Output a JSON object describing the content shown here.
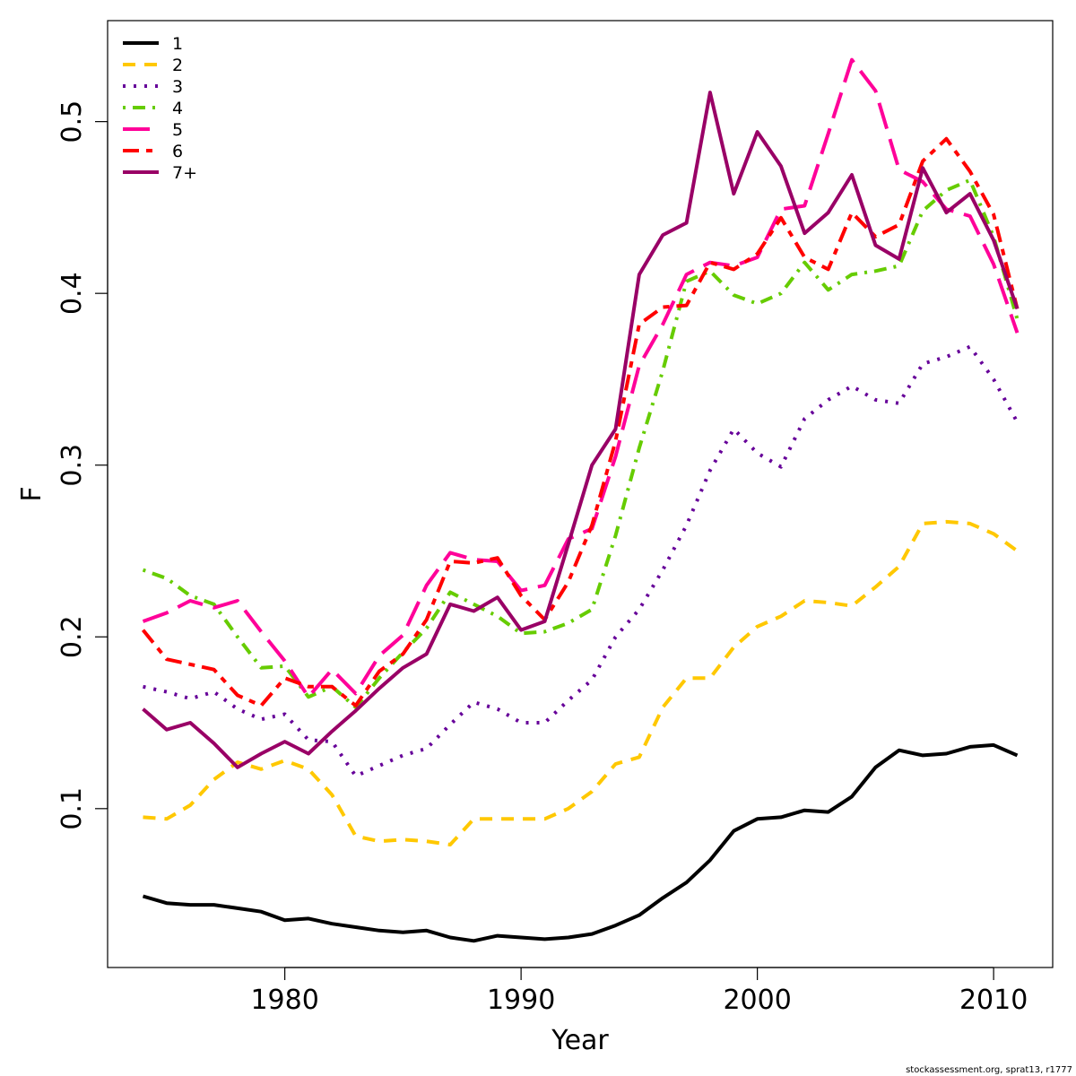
{
  "chart_data": {
    "type": "line",
    "title": "",
    "xlabel": "Year",
    "ylabel": "F",
    "xlim": [
      1972.5,
      2012.5
    ],
    "ylim": [
      0.0075,
      0.5588
    ],
    "x_ticks": [
      1980,
      1990,
      2000,
      2010
    ],
    "x_tick_labels": [
      "1980",
      "1990",
      "2000",
      "2010"
    ],
    "y_ticks": [
      0.1,
      0.2,
      0.3,
      0.4,
      0.5
    ],
    "y_tick_labels": [
      "0.1",
      "0.2",
      "0.3",
      "0.4",
      "0.5"
    ],
    "grid": false,
    "legend_position": "top-left",
    "x": [
      1974,
      1975,
      1976,
      1977,
      1978,
      1979,
      1980,
      1981,
      1982,
      1983,
      1984,
      1985,
      1986,
      1987,
      1988,
      1989,
      1990,
      1991,
      1992,
      1993,
      1994,
      1995,
      1996,
      1997,
      1998,
      1999,
      2000,
      2001,
      2002,
      2003,
      2004,
      2005,
      2006,
      2007,
      2008,
      2009,
      2010,
      2011
    ],
    "series": [
      {
        "name": "1",
        "color": "#000000",
        "dash": "solid",
        "values": [
          0.049,
          0.045,
          0.044,
          0.044,
          0.042,
          0.04,
          0.035,
          0.036,
          0.033,
          0.031,
          0.029,
          0.028,
          0.029,
          0.025,
          0.023,
          0.026,
          0.025,
          0.024,
          0.025,
          0.027,
          0.032,
          0.038,
          0.048,
          0.057,
          0.07,
          0.087,
          0.094,
          0.095,
          0.099,
          0.098,
          0.107,
          0.124,
          0.134,
          0.131,
          0.132,
          0.136,
          0.137,
          0.131
        ]
      },
      {
        "name": "2",
        "color": "#FFC800",
        "dash": "dash",
        "values": [
          0.095,
          0.094,
          0.102,
          0.117,
          0.127,
          0.123,
          0.128,
          0.123,
          0.108,
          0.084,
          0.081,
          0.082,
          0.081,
          0.079,
          0.094,
          0.094,
          0.094,
          0.094,
          0.1,
          0.11,
          0.126,
          0.13,
          0.159,
          0.176,
          0.176,
          0.194,
          0.206,
          0.212,
          0.221,
          0.22,
          0.218,
          0.229,
          0.241,
          0.266,
          0.267,
          0.266,
          0.26,
          0.25
        ]
      },
      {
        "name": "3",
        "color": "#660099",
        "dash": "dot",
        "values": [
          0.171,
          0.168,
          0.164,
          0.168,
          0.158,
          0.152,
          0.155,
          0.14,
          0.139,
          0.119,
          0.125,
          0.131,
          0.135,
          0.149,
          0.162,
          0.158,
          0.15,
          0.15,
          0.163,
          0.175,
          0.2,
          0.216,
          0.239,
          0.265,
          0.297,
          0.321,
          0.307,
          0.299,
          0.327,
          0.338,
          0.346,
          0.338,
          0.336,
          0.359,
          0.363,
          0.369,
          0.35,
          0.325
        ]
      },
      {
        "name": "4",
        "color": "#66CC00",
        "dash": "dotdash",
        "values": [
          0.239,
          0.234,
          0.224,
          0.219,
          0.2,
          0.182,
          0.183,
          0.165,
          0.171,
          0.159,
          0.176,
          0.191,
          0.205,
          0.226,
          0.219,
          0.212,
          0.202,
          0.203,
          0.208,
          0.216,
          0.259,
          0.31,
          0.355,
          0.407,
          0.413,
          0.399,
          0.394,
          0.4,
          0.418,
          0.402,
          0.411,
          0.413,
          0.416,
          0.448,
          0.46,
          0.466,
          0.433,
          0.385
        ]
      },
      {
        "name": "5",
        "color": "#FF0099",
        "dash": "longdash",
        "values": [
          0.209,
          0.214,
          0.221,
          0.217,
          0.221,
          0.203,
          0.186,
          0.165,
          0.181,
          0.167,
          0.189,
          0.201,
          0.23,
          0.249,
          0.245,
          0.244,
          0.227,
          0.23,
          0.257,
          0.263,
          0.305,
          0.358,
          0.382,
          0.411,
          0.418,
          0.416,
          0.421,
          0.449,
          0.451,
          0.493,
          0.536,
          0.518,
          0.472,
          0.465,
          0.449,
          0.445,
          0.417,
          0.377
        ]
      },
      {
        "name": "6",
        "color": "#FF0000",
        "dash": "dash2",
        "values": [
          0.204,
          0.187,
          0.184,
          0.181,
          0.166,
          0.16,
          0.176,
          0.171,
          0.171,
          0.16,
          0.18,
          0.19,
          0.21,
          0.244,
          0.243,
          0.246,
          0.224,
          0.21,
          0.232,
          0.265,
          0.314,
          0.382,
          0.392,
          0.393,
          0.418,
          0.414,
          0.423,
          0.444,
          0.421,
          0.414,
          0.447,
          0.433,
          0.44,
          0.477,
          0.49,
          0.471,
          0.446,
          0.391
        ]
      },
      {
        "name": "7+",
        "color": "#990066",
        "dash": "solid",
        "values": [
          0.158,
          0.146,
          0.15,
          0.138,
          0.124,
          0.132,
          0.139,
          0.132,
          0.145,
          0.157,
          0.17,
          0.182,
          0.19,
          0.219,
          0.215,
          0.223,
          0.204,
          0.209,
          0.254,
          0.3,
          0.321,
          0.411,
          0.434,
          0.441,
          0.517,
          0.458,
          0.494,
          0.474,
          0.435,
          0.447,
          0.469,
          0.428,
          0.42,
          0.473,
          0.447,
          0.458,
          0.431,
          0.391
        ]
      }
    ]
  },
  "footer": {
    "credit": "stockassessment.org, sprat13, r1777"
  }
}
